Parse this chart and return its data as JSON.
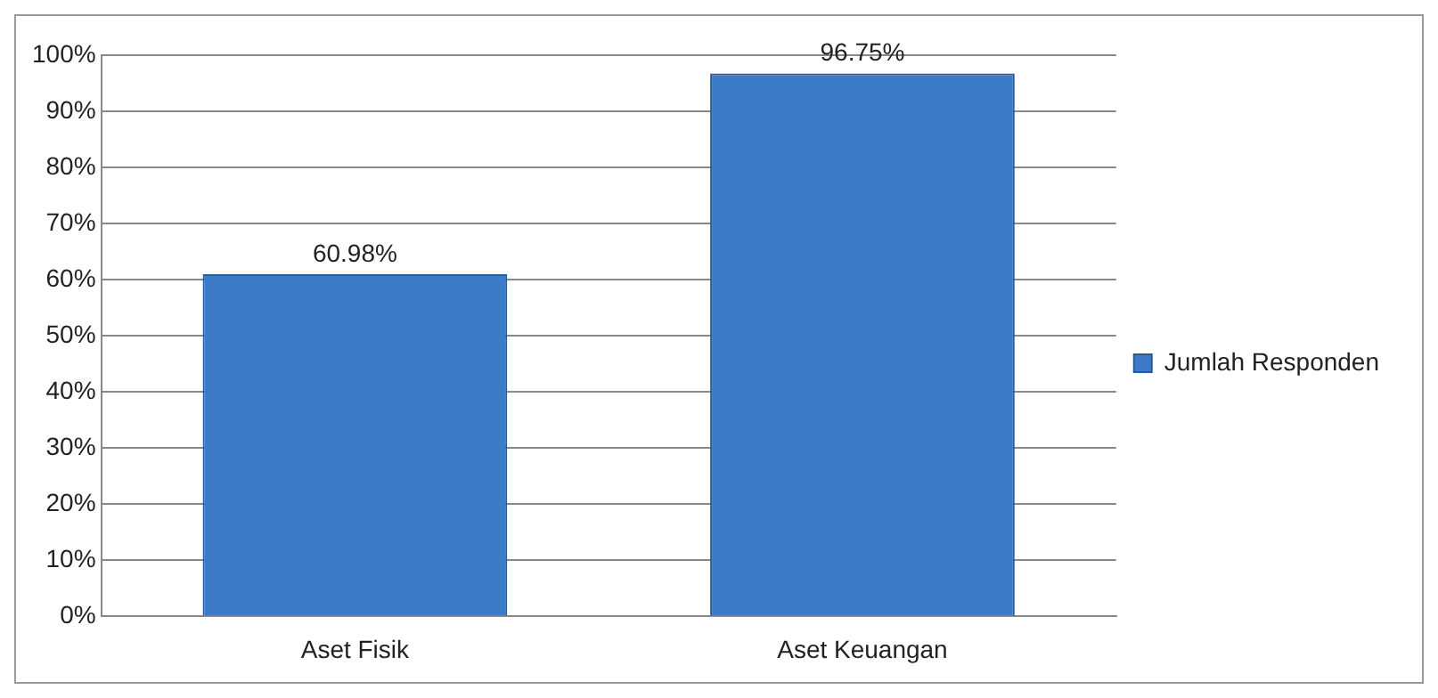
{
  "chart_data": {
    "type": "bar",
    "categories": [
      "Aset Fisik",
      "Aset Keuangan"
    ],
    "series": [
      {
        "name": "Jumlah Responden",
        "color": "#3b7bc8",
        "values": [
          60.98,
          96.75
        ],
        "value_labels": [
          "60.98%",
          "96.75%"
        ]
      }
    ],
    "ylim": [
      0,
      100
    ],
    "yticks": [
      {
        "value": 0,
        "label": "0%"
      },
      {
        "value": 10,
        "label": "10%"
      },
      {
        "value": 20,
        "label": "20%"
      },
      {
        "value": 30,
        "label": "30%"
      },
      {
        "value": 40,
        "label": "40%"
      },
      {
        "value": 50,
        "label": "50%"
      },
      {
        "value": 60,
        "label": "60%"
      },
      {
        "value": 70,
        "label": "70%"
      },
      {
        "value": 80,
        "label": "80%"
      },
      {
        "value": 90,
        "label": "90%"
      },
      {
        "value": 100,
        "label": "100%"
      }
    ],
    "grid": "y",
    "legend": "right"
  }
}
